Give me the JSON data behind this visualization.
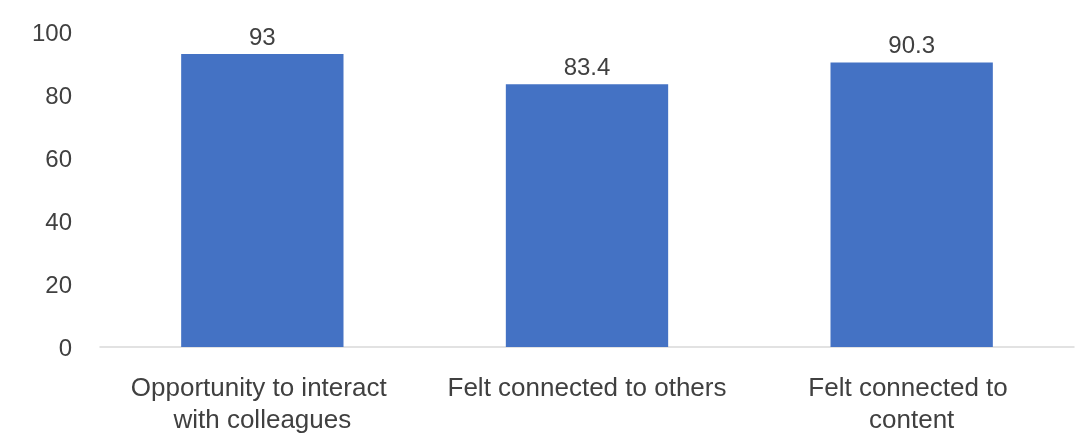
{
  "chart_data": {
    "type": "bar",
    "categories": [
      "Opportunity to interact with colleagues",
      "Felt connected to others",
      "Felt connected to content"
    ],
    "values": [
      93,
      83.4,
      90.3
    ],
    "color": "#4472c4",
    "ylim": [
      0,
      100
    ],
    "yticks": [
      0,
      20,
      40,
      60,
      80,
      100
    ],
    "grid": false,
    "data_labels": true
  }
}
